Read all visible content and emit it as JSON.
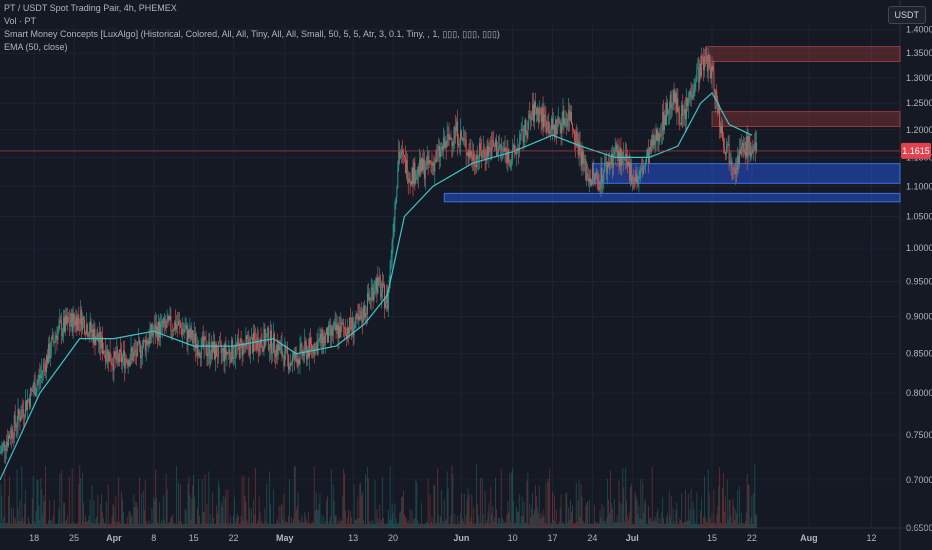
{
  "legend": {
    "title": "PT / USDT Spot Trading Pair, 4h, PHEMEX",
    "volume": "Vol · PT",
    "smc": "Smart Money Concepts [LuxAlgo] (Historical, Colored, All, All, Tiny, All, All, Small, 50, 5, 5, Atr, 3, 0.1, Tiny, , 1, ▯▯▯, ▯▯▯, ▯▯▯)",
    "ema": "EMA (50, close)"
  },
  "currency": "USDT",
  "colors": {
    "background": "#151924",
    "up": "#26a69a",
    "down": "#ef5350",
    "ema": "#3ec5c5",
    "grid": "#1f2330",
    "supply_fill": "rgba(178,60,60,0.35)",
    "demand_fill": "rgba(41,98,255,0.45)",
    "price_line": "#c0454f",
    "price_badge": "#e0434e"
  },
  "chart_data": {
    "type": "candlestick",
    "y_axis": {
      "scale": "log",
      "range": [
        0.65,
        1.41
      ],
      "ticks": [
        "1.4000",
        "1.3500",
        "1.3000",
        "1.2500",
        "1.2000",
        "1.1500",
        "1.1000",
        "1.0500",
        "1.0000",
        "0.9500",
        "0.9000",
        "0.8500",
        "0.8000",
        "0.7500",
        "0.7000",
        "0.6500"
      ]
    },
    "x_axis": {
      "ticks": [
        "18",
        "25",
        "Apr",
        "8",
        "15",
        "22",
        "May",
        "13",
        "20",
        "Jun",
        "10",
        "17",
        "24",
        "Jul",
        "15",
        "22",
        "Aug",
        "12"
      ]
    },
    "last_price": "1.1615",
    "price_path": [
      [
        "Mar 12",
        0.73
      ],
      [
        "Mar 16",
        0.78
      ],
      [
        "Mar 19",
        0.82
      ],
      [
        "Mar 22",
        0.88
      ],
      [
        "Mar 26",
        0.9
      ],
      [
        "Mar 29",
        0.87
      ],
      [
        "Apr 1",
        0.84
      ],
      [
        "Apr 5",
        0.85
      ],
      [
        "Apr 8",
        0.88
      ],
      [
        "Apr 12",
        0.89
      ],
      [
        "Apr 16",
        0.86
      ],
      [
        "Apr 20",
        0.85
      ],
      [
        "Apr 24",
        0.86
      ],
      [
        "Apr 28",
        0.87
      ],
      [
        "May 2",
        0.84
      ],
      [
        "May 6",
        0.86
      ],
      [
        "May 10",
        0.88
      ],
      [
        "May 14",
        0.89
      ],
      [
        "May 17",
        0.95
      ],
      [
        "May 19",
        0.92
      ],
      [
        "May 21",
        1.16
      ],
      [
        "May 23",
        1.12
      ],
      [
        "May 27",
        1.14
      ],
      [
        "May 31",
        1.2
      ],
      [
        "Jun 3",
        1.15
      ],
      [
        "Jun 7",
        1.17
      ],
      [
        "Jun 10",
        1.15
      ],
      [
        "Jun 14",
        1.24
      ],
      [
        "Jun 17",
        1.2
      ],
      [
        "Jun 20",
        1.23
      ],
      [
        "Jun 23",
        1.12
      ],
      [
        "Jun 25",
        1.11
      ],
      [
        "Jun 28",
        1.16
      ],
      [
        "Jul 2",
        1.11
      ],
      [
        "Jul 5",
        1.18
      ],
      [
        "Jul 8",
        1.26
      ],
      [
        "Jul 10",
        1.22
      ],
      [
        "Jul 12",
        1.3
      ],
      [
        "Jul 14",
        1.34
      ],
      [
        "Jul 15",
        1.31
      ],
      [
        "Jul 17",
        1.18
      ],
      [
        "Jul 19",
        1.14
      ],
      [
        "Jul 21",
        1.17
      ],
      [
        "Jul 23",
        1.16
      ]
    ],
    "ema_path": [
      [
        "Mar 12",
        0.7
      ],
      [
        "Mar 19",
        0.8
      ],
      [
        "Mar 26",
        0.87
      ],
      [
        "Apr 1",
        0.87
      ],
      [
        "Apr 8",
        0.88
      ],
      [
        "Apr 15",
        0.86
      ],
      [
        "Apr 22",
        0.86
      ],
      [
        "Apr 29",
        0.87
      ],
      [
        "May 3",
        0.85
      ],
      [
        "May 10",
        0.86
      ],
      [
        "May 15",
        0.89
      ],
      [
        "May 19",
        0.93
      ],
      [
        "May 22",
        1.05
      ],
      [
        "May 27",
        1.1
      ],
      [
        "Jun 3",
        1.14
      ],
      [
        "Jun 10",
        1.16
      ],
      [
        "Jun 17",
        1.19
      ],
      [
        "Jun 22",
        1.17
      ],
      [
        "Jun 28",
        1.15
      ],
      [
        "Jul 4",
        1.15
      ],
      [
        "Jul 9",
        1.17
      ],
      [
        "Jul 13",
        1.25
      ],
      [
        "Jul 15",
        1.27
      ],
      [
        "Jul 18",
        1.21
      ],
      [
        "Jul 22",
        1.19
      ]
    ],
    "supply_zones": [
      {
        "from": "Jul 14",
        "to": "Aug 16",
        "top": 1.364,
        "bottom": 1.333
      },
      {
        "from": "Jul 15",
        "to": "Aug 16",
        "top": 1.234,
        "bottom": 1.206
      }
    ],
    "demand_zones": [
      {
        "from": "Jun 24",
        "to": "Aug 16",
        "top": 1.139,
        "bottom": 1.105
      },
      {
        "from": "May 29",
        "to": "Aug 16",
        "top": 1.088,
        "bottom": 1.074
      }
    ]
  }
}
